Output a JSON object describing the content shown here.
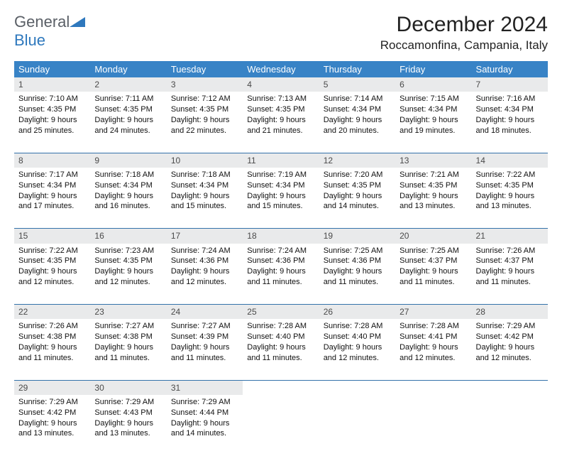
{
  "logo": {
    "general": "General",
    "blue": "Blue"
  },
  "title": "December 2024",
  "location": "Roccamonfina, Campania, Italy",
  "colors": {
    "header_bg": "#3883c6",
    "header_text": "#ffffff",
    "daynum_bg": "#e9eaeb",
    "divider": "#3472aa",
    "logo_blue": "#2e78bd",
    "logo_gray": "#5a5f66"
  },
  "dayNames": [
    "Sunday",
    "Monday",
    "Tuesday",
    "Wednesday",
    "Thursday",
    "Friday",
    "Saturday"
  ],
  "weeks": [
    [
      {
        "n": "1",
        "sr": "7:10 AM",
        "ss": "4:35 PM",
        "dl": "9 hours and 25 minutes."
      },
      {
        "n": "2",
        "sr": "7:11 AM",
        "ss": "4:35 PM",
        "dl": "9 hours and 24 minutes."
      },
      {
        "n": "3",
        "sr": "7:12 AM",
        "ss": "4:35 PM",
        "dl": "9 hours and 22 minutes."
      },
      {
        "n": "4",
        "sr": "7:13 AM",
        "ss": "4:35 PM",
        "dl": "9 hours and 21 minutes."
      },
      {
        "n": "5",
        "sr": "7:14 AM",
        "ss": "4:34 PM",
        "dl": "9 hours and 20 minutes."
      },
      {
        "n": "6",
        "sr": "7:15 AM",
        "ss": "4:34 PM",
        "dl": "9 hours and 19 minutes."
      },
      {
        "n": "7",
        "sr": "7:16 AM",
        "ss": "4:34 PM",
        "dl": "9 hours and 18 minutes."
      }
    ],
    [
      {
        "n": "8",
        "sr": "7:17 AM",
        "ss": "4:34 PM",
        "dl": "9 hours and 17 minutes."
      },
      {
        "n": "9",
        "sr": "7:18 AM",
        "ss": "4:34 PM",
        "dl": "9 hours and 16 minutes."
      },
      {
        "n": "10",
        "sr": "7:18 AM",
        "ss": "4:34 PM",
        "dl": "9 hours and 15 minutes."
      },
      {
        "n": "11",
        "sr": "7:19 AM",
        "ss": "4:34 PM",
        "dl": "9 hours and 15 minutes."
      },
      {
        "n": "12",
        "sr": "7:20 AM",
        "ss": "4:35 PM",
        "dl": "9 hours and 14 minutes."
      },
      {
        "n": "13",
        "sr": "7:21 AM",
        "ss": "4:35 PM",
        "dl": "9 hours and 13 minutes."
      },
      {
        "n": "14",
        "sr": "7:22 AM",
        "ss": "4:35 PM",
        "dl": "9 hours and 13 minutes."
      }
    ],
    [
      {
        "n": "15",
        "sr": "7:22 AM",
        "ss": "4:35 PM",
        "dl": "9 hours and 12 minutes."
      },
      {
        "n": "16",
        "sr": "7:23 AM",
        "ss": "4:35 PM",
        "dl": "9 hours and 12 minutes."
      },
      {
        "n": "17",
        "sr": "7:24 AM",
        "ss": "4:36 PM",
        "dl": "9 hours and 12 minutes."
      },
      {
        "n": "18",
        "sr": "7:24 AM",
        "ss": "4:36 PM",
        "dl": "9 hours and 11 minutes."
      },
      {
        "n": "19",
        "sr": "7:25 AM",
        "ss": "4:36 PM",
        "dl": "9 hours and 11 minutes."
      },
      {
        "n": "20",
        "sr": "7:25 AM",
        "ss": "4:37 PM",
        "dl": "9 hours and 11 minutes."
      },
      {
        "n": "21",
        "sr": "7:26 AM",
        "ss": "4:37 PM",
        "dl": "9 hours and 11 minutes."
      }
    ],
    [
      {
        "n": "22",
        "sr": "7:26 AM",
        "ss": "4:38 PM",
        "dl": "9 hours and 11 minutes."
      },
      {
        "n": "23",
        "sr": "7:27 AM",
        "ss": "4:38 PM",
        "dl": "9 hours and 11 minutes."
      },
      {
        "n": "24",
        "sr": "7:27 AM",
        "ss": "4:39 PM",
        "dl": "9 hours and 11 minutes."
      },
      {
        "n": "25",
        "sr": "7:28 AM",
        "ss": "4:40 PM",
        "dl": "9 hours and 11 minutes."
      },
      {
        "n": "26",
        "sr": "7:28 AM",
        "ss": "4:40 PM",
        "dl": "9 hours and 12 minutes."
      },
      {
        "n": "27",
        "sr": "7:28 AM",
        "ss": "4:41 PM",
        "dl": "9 hours and 12 minutes."
      },
      {
        "n": "28",
        "sr": "7:29 AM",
        "ss": "4:42 PM",
        "dl": "9 hours and 12 minutes."
      }
    ],
    [
      {
        "n": "29",
        "sr": "7:29 AM",
        "ss": "4:42 PM",
        "dl": "9 hours and 13 minutes."
      },
      {
        "n": "30",
        "sr": "7:29 AM",
        "ss": "4:43 PM",
        "dl": "9 hours and 13 minutes."
      },
      {
        "n": "31",
        "sr": "7:29 AM",
        "ss": "4:44 PM",
        "dl": "9 hours and 14 minutes."
      },
      null,
      null,
      null,
      null
    ]
  ],
  "labels": {
    "sunrise": "Sunrise: ",
    "sunset": "Sunset: ",
    "daylight": "Daylight: "
  }
}
